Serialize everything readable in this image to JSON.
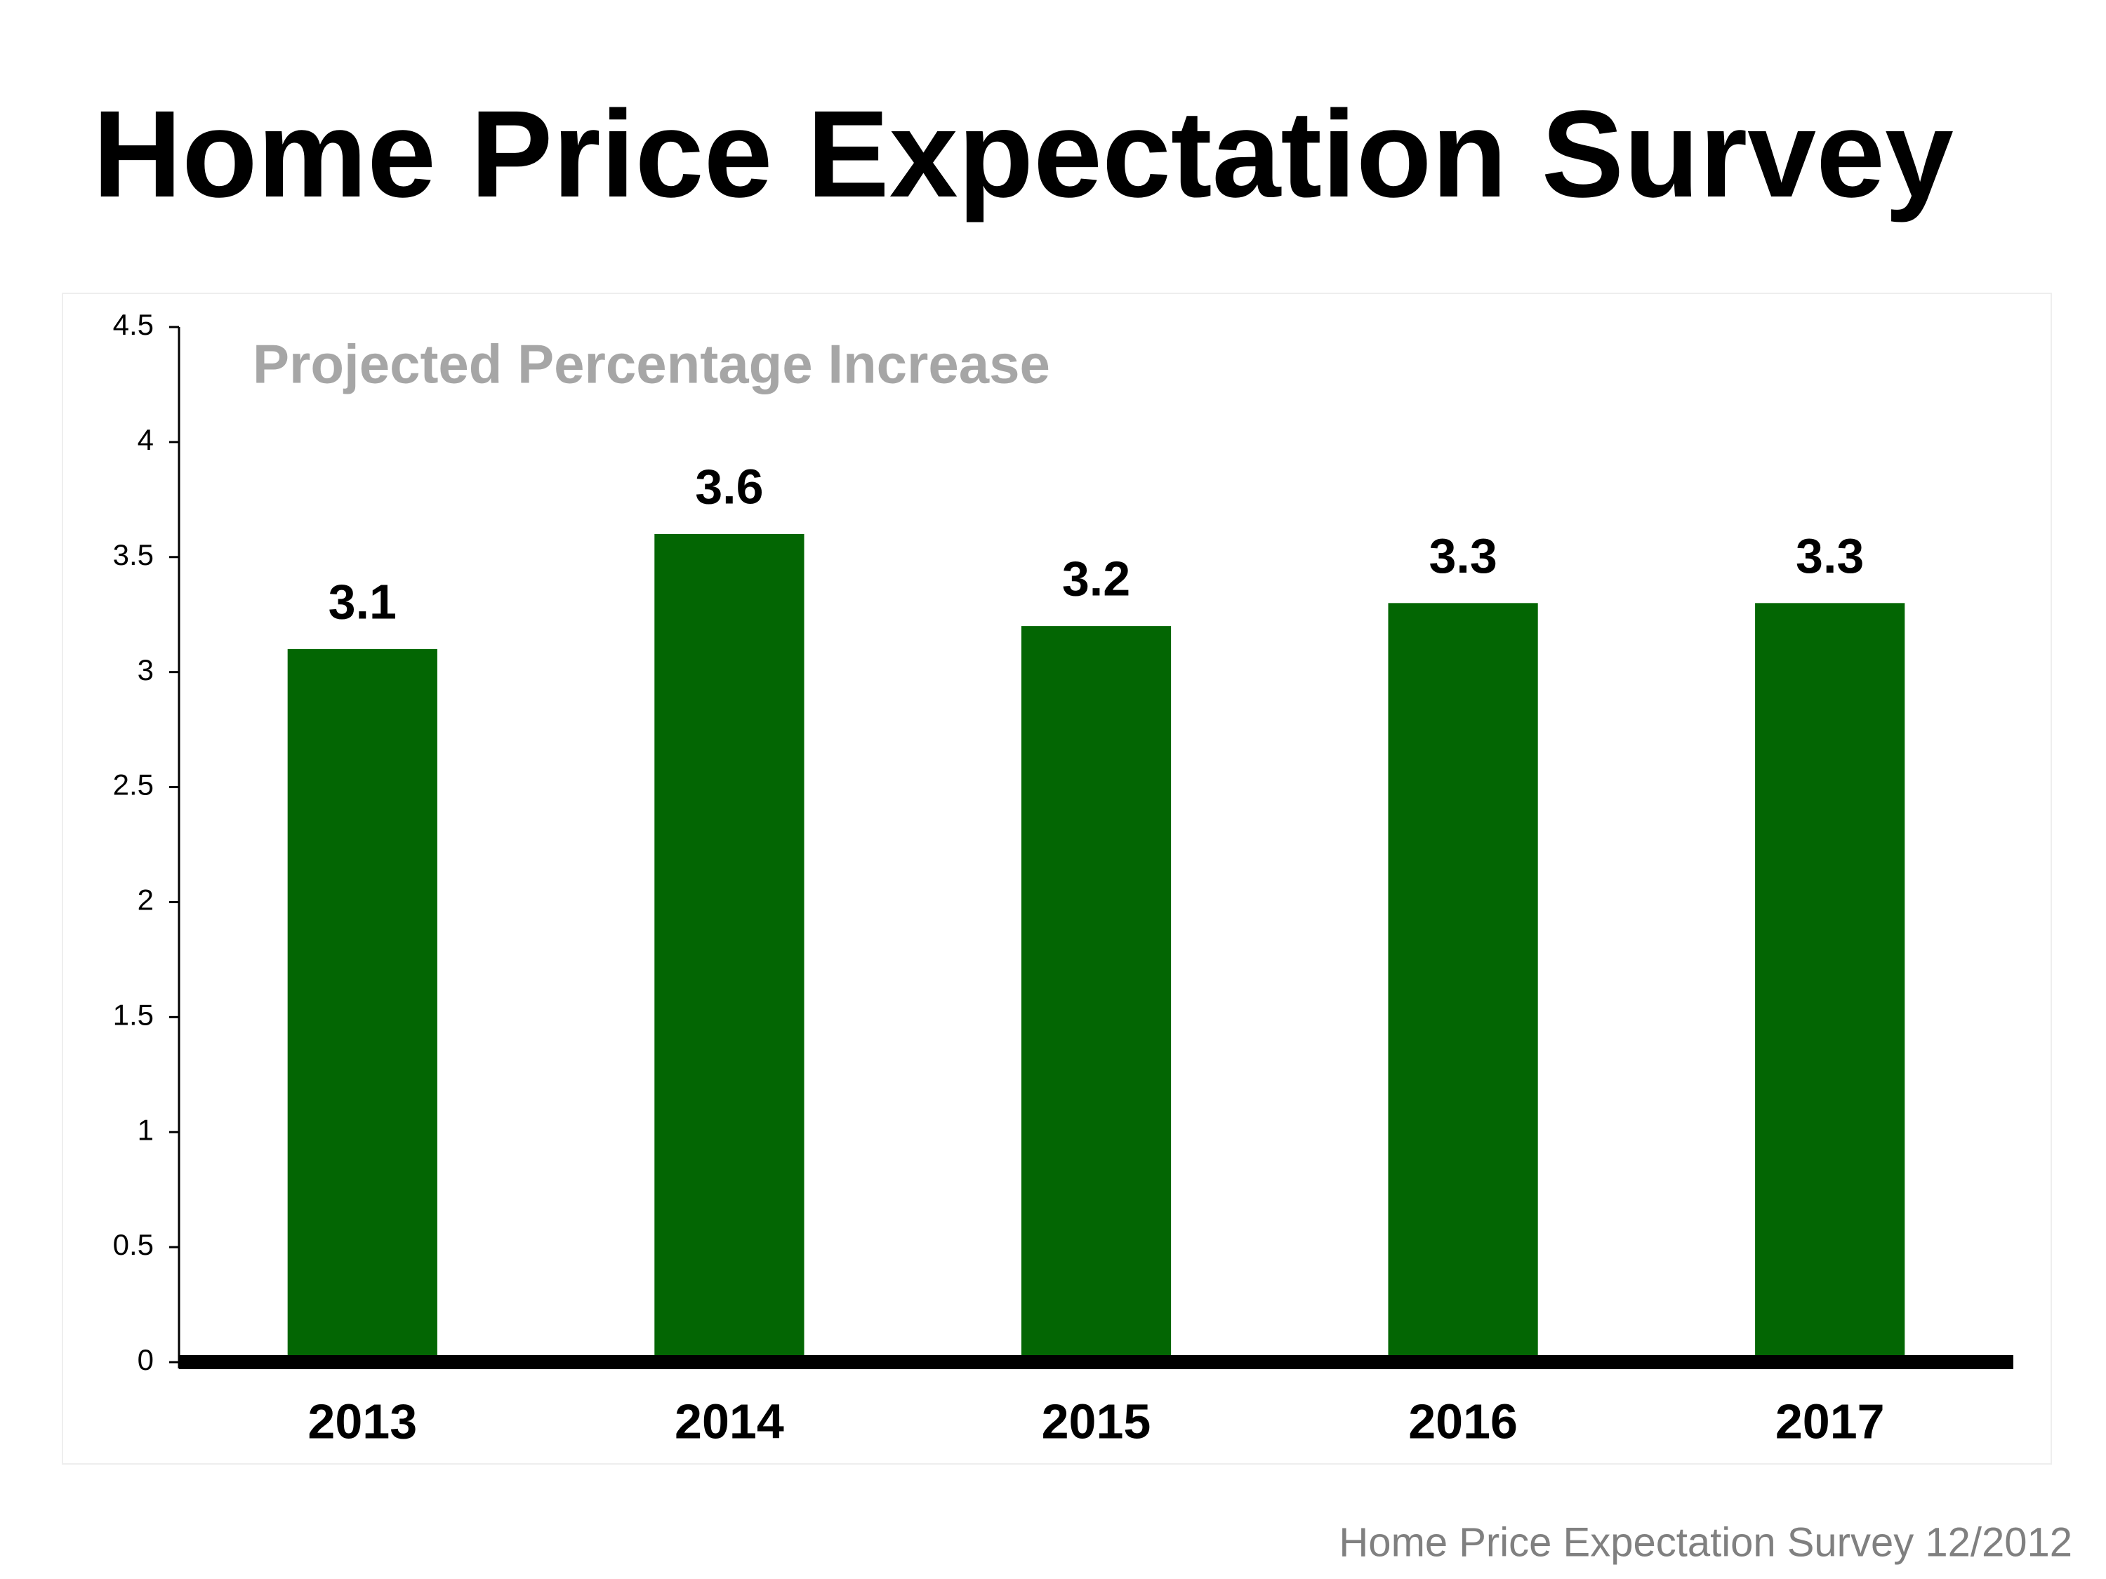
{
  "chart_data": {
    "type": "bar",
    "title": "Home Price Expectation Survey",
    "subtitle": "Projected Percentage Increase",
    "source": "Home Price Expectation Survey 12/2012",
    "categories": [
      "2013",
      "2014",
      "2015",
      "2016",
      "2017"
    ],
    "values": [
      3.1,
      3.6,
      3.2,
      3.3,
      3.3
    ],
    "color": "#036603",
    "ylim": [
      0,
      4.5
    ],
    "yticks": [
      0,
      0.5,
      1,
      1.5,
      2,
      2.5,
      3,
      3.5,
      4,
      4.5
    ],
    "grid": false
  }
}
